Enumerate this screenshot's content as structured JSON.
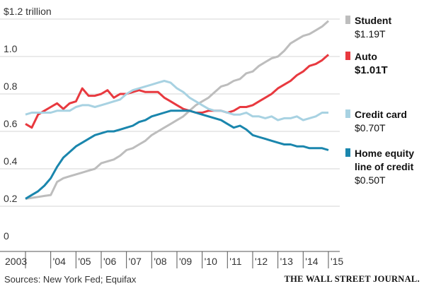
{
  "chart_data": {
    "type": "line",
    "ylim": [
      0,
      1.2
    ],
    "y_ticks": [
      {
        "value": 0,
        "label": "0"
      },
      {
        "value": 0.2,
        "label": "0.2"
      },
      {
        "value": 0.4,
        "label": "0.4"
      },
      {
        "value": 0.6,
        "label": "0.6"
      },
      {
        "value": 0.8,
        "label": "0.8"
      },
      {
        "value": 1.0,
        "label": "1.0"
      },
      {
        "value": 1.2,
        "label": "$1.2 trillion"
      }
    ],
    "x_ticks": [
      {
        "value": 2003,
        "label": "2003"
      },
      {
        "value": 2004,
        "label": "'04"
      },
      {
        "value": 2005,
        "label": "'05"
      },
      {
        "value": 2006,
        "label": "'06"
      },
      {
        "value": 2007,
        "label": "'07"
      },
      {
        "value": 2008,
        "label": "'08"
      },
      {
        "value": 2009,
        "label": "'09"
      },
      {
        "value": 2010,
        "label": "'10"
      },
      {
        "value": 2011,
        "label": "'11"
      },
      {
        "value": 2012,
        "label": "'12"
      },
      {
        "value": 2013,
        "label": "'13"
      },
      {
        "value": 2014,
        "label": "'14"
      },
      {
        "value": 2015,
        "label": "'15"
      }
    ],
    "xlim": [
      2003,
      2015.45
    ],
    "grid": "horizontal",
    "legend_position": "right",
    "series": [
      {
        "name": "Student",
        "value_label": "$1.19T",
        "color": "#bdbdbd",
        "points": [
          [
            2003.0,
            0.24
          ],
          [
            2003.25,
            0.245
          ],
          [
            2003.5,
            0.25
          ],
          [
            2003.75,
            0.255
          ],
          [
            2004.0,
            0.26
          ],
          [
            2004.25,
            0.33
          ],
          [
            2004.5,
            0.35
          ],
          [
            2004.75,
            0.36
          ],
          [
            2005.0,
            0.37
          ],
          [
            2005.25,
            0.38
          ],
          [
            2005.5,
            0.39
          ],
          [
            2005.75,
            0.4
          ],
          [
            2006.0,
            0.43
          ],
          [
            2006.25,
            0.44
          ],
          [
            2006.5,
            0.45
          ],
          [
            2006.75,
            0.47
          ],
          [
            2007.0,
            0.5
          ],
          [
            2007.25,
            0.51
          ],
          [
            2007.5,
            0.53
          ],
          [
            2007.75,
            0.55
          ],
          [
            2008.0,
            0.58
          ],
          [
            2008.25,
            0.6
          ],
          [
            2008.5,
            0.62
          ],
          [
            2008.75,
            0.64
          ],
          [
            2009.0,
            0.66
          ],
          [
            2009.25,
            0.68
          ],
          [
            2009.5,
            0.71
          ],
          [
            2009.75,
            0.74
          ],
          [
            2010.0,
            0.76
          ],
          [
            2010.25,
            0.78
          ],
          [
            2010.5,
            0.81
          ],
          [
            2010.75,
            0.84
          ],
          [
            2011.0,
            0.85
          ],
          [
            2011.25,
            0.87
          ],
          [
            2011.5,
            0.88
          ],
          [
            2011.75,
            0.91
          ],
          [
            2012.0,
            0.92
          ],
          [
            2012.25,
            0.95
          ],
          [
            2012.5,
            0.97
          ],
          [
            2012.75,
            0.99
          ],
          [
            2013.0,
            1.0
          ],
          [
            2013.25,
            1.03
          ],
          [
            2013.5,
            1.07
          ],
          [
            2013.75,
            1.09
          ],
          [
            2014.0,
            1.11
          ],
          [
            2014.25,
            1.12
          ],
          [
            2014.5,
            1.14
          ],
          [
            2014.75,
            1.16
          ],
          [
            2015.0,
            1.19
          ]
        ]
      },
      {
        "name": "Auto",
        "value_label": "$1.01T",
        "color": "#e8393f",
        "points": [
          [
            2003.0,
            0.64
          ],
          [
            2003.25,
            0.62
          ],
          [
            2003.5,
            0.69
          ],
          [
            2003.75,
            0.71
          ],
          [
            2004.0,
            0.73
          ],
          [
            2004.25,
            0.75
          ],
          [
            2004.5,
            0.72
          ],
          [
            2004.75,
            0.75
          ],
          [
            2005.0,
            0.76
          ],
          [
            2005.25,
            0.83
          ],
          [
            2005.5,
            0.79
          ],
          [
            2005.75,
            0.79
          ],
          [
            2006.0,
            0.8
          ],
          [
            2006.25,
            0.82
          ],
          [
            2006.5,
            0.78
          ],
          [
            2006.75,
            0.8
          ],
          [
            2007.0,
            0.8
          ],
          [
            2007.25,
            0.81
          ],
          [
            2007.5,
            0.82
          ],
          [
            2007.75,
            0.81
          ],
          [
            2008.0,
            0.81
          ],
          [
            2008.25,
            0.81
          ],
          [
            2008.5,
            0.78
          ],
          [
            2008.75,
            0.76
          ],
          [
            2009.0,
            0.74
          ],
          [
            2009.25,
            0.72
          ],
          [
            2009.5,
            0.71
          ],
          [
            2009.75,
            0.7
          ],
          [
            2010.0,
            0.7
          ],
          [
            2010.25,
            0.71
          ],
          [
            2010.5,
            0.71
          ],
          [
            2010.75,
            0.71
          ],
          [
            2011.0,
            0.7
          ],
          [
            2011.25,
            0.71
          ],
          [
            2011.5,
            0.73
          ],
          [
            2011.75,
            0.73
          ],
          [
            2012.0,
            0.74
          ],
          [
            2012.25,
            0.76
          ],
          [
            2012.5,
            0.78
          ],
          [
            2012.75,
            0.8
          ],
          [
            2013.0,
            0.83
          ],
          [
            2013.25,
            0.85
          ],
          [
            2013.5,
            0.87
          ],
          [
            2013.75,
            0.9
          ],
          [
            2014.0,
            0.92
          ],
          [
            2014.25,
            0.95
          ],
          [
            2014.5,
            0.96
          ],
          [
            2014.75,
            0.98
          ],
          [
            2015.0,
            1.01
          ]
        ]
      },
      {
        "name": "Credit card",
        "value_label": "$0.70T",
        "color": "#a8d2e2",
        "points": [
          [
            2003.0,
            0.69
          ],
          [
            2003.25,
            0.7
          ],
          [
            2003.5,
            0.7
          ],
          [
            2003.75,
            0.7
          ],
          [
            2004.0,
            0.7
          ],
          [
            2004.25,
            0.71
          ],
          [
            2004.5,
            0.71
          ],
          [
            2004.75,
            0.71
          ],
          [
            2005.0,
            0.73
          ],
          [
            2005.25,
            0.74
          ],
          [
            2005.5,
            0.74
          ],
          [
            2005.75,
            0.73
          ],
          [
            2006.0,
            0.74
          ],
          [
            2006.25,
            0.75
          ],
          [
            2006.5,
            0.76
          ],
          [
            2006.75,
            0.77
          ],
          [
            2007.0,
            0.8
          ],
          [
            2007.25,
            0.82
          ],
          [
            2007.5,
            0.83
          ],
          [
            2007.75,
            0.84
          ],
          [
            2008.0,
            0.85
          ],
          [
            2008.25,
            0.86
          ],
          [
            2008.5,
            0.87
          ],
          [
            2008.75,
            0.86
          ],
          [
            2009.0,
            0.83
          ],
          [
            2009.25,
            0.81
          ],
          [
            2009.5,
            0.78
          ],
          [
            2009.75,
            0.76
          ],
          [
            2010.0,
            0.74
          ],
          [
            2010.25,
            0.72
          ],
          [
            2010.5,
            0.71
          ],
          [
            2010.75,
            0.71
          ],
          [
            2011.0,
            0.7
          ],
          [
            2011.25,
            0.69
          ],
          [
            2011.5,
            0.69
          ],
          [
            2011.75,
            0.7
          ],
          [
            2012.0,
            0.68
          ],
          [
            2012.25,
            0.68
          ],
          [
            2012.5,
            0.67
          ],
          [
            2012.75,
            0.68
          ],
          [
            2013.0,
            0.66
          ],
          [
            2013.25,
            0.67
          ],
          [
            2013.5,
            0.67
          ],
          [
            2013.75,
            0.68
          ],
          [
            2014.0,
            0.66
          ],
          [
            2014.25,
            0.67
          ],
          [
            2014.5,
            0.68
          ],
          [
            2014.75,
            0.7
          ],
          [
            2015.0,
            0.7
          ]
        ]
      },
      {
        "name": "Home equity line of credit",
        "name_lines": [
          "Home equity",
          "line of credit"
        ],
        "value_label": "$0.50T",
        "color": "#1a86ad",
        "points": [
          [
            2003.0,
            0.24
          ],
          [
            2003.25,
            0.26
          ],
          [
            2003.5,
            0.28
          ],
          [
            2003.75,
            0.31
          ],
          [
            2004.0,
            0.35
          ],
          [
            2004.25,
            0.41
          ],
          [
            2004.5,
            0.46
          ],
          [
            2004.75,
            0.49
          ],
          [
            2005.0,
            0.52
          ],
          [
            2005.25,
            0.54
          ],
          [
            2005.5,
            0.56
          ],
          [
            2005.75,
            0.58
          ],
          [
            2006.0,
            0.59
          ],
          [
            2006.25,
            0.6
          ],
          [
            2006.5,
            0.6
          ],
          [
            2006.75,
            0.61
          ],
          [
            2007.0,
            0.62
          ],
          [
            2007.25,
            0.63
          ],
          [
            2007.5,
            0.65
          ],
          [
            2007.75,
            0.66
          ],
          [
            2008.0,
            0.68
          ],
          [
            2008.25,
            0.69
          ],
          [
            2008.5,
            0.7
          ],
          [
            2008.75,
            0.71
          ],
          [
            2009.0,
            0.71
          ],
          [
            2009.25,
            0.71
          ],
          [
            2009.5,
            0.71
          ],
          [
            2009.75,
            0.7
          ],
          [
            2010.0,
            0.69
          ],
          [
            2010.25,
            0.68
          ],
          [
            2010.5,
            0.67
          ],
          [
            2010.75,
            0.66
          ],
          [
            2011.0,
            0.64
          ],
          [
            2011.25,
            0.62
          ],
          [
            2011.5,
            0.63
          ],
          [
            2011.75,
            0.61
          ],
          [
            2012.0,
            0.58
          ],
          [
            2012.25,
            0.57
          ],
          [
            2012.5,
            0.56
          ],
          [
            2012.75,
            0.55
          ],
          [
            2013.0,
            0.54
          ],
          [
            2013.25,
            0.53
          ],
          [
            2013.5,
            0.53
          ],
          [
            2013.75,
            0.52
          ],
          [
            2014.0,
            0.52
          ],
          [
            2014.25,
            0.51
          ],
          [
            2014.5,
            0.51
          ],
          [
            2014.75,
            0.51
          ],
          [
            2015.0,
            0.5
          ]
        ]
      }
    ]
  },
  "footer": {
    "source": "Sources: New York Fed; Equifax",
    "brand": "THE WALL STREET JOURNAL."
  }
}
